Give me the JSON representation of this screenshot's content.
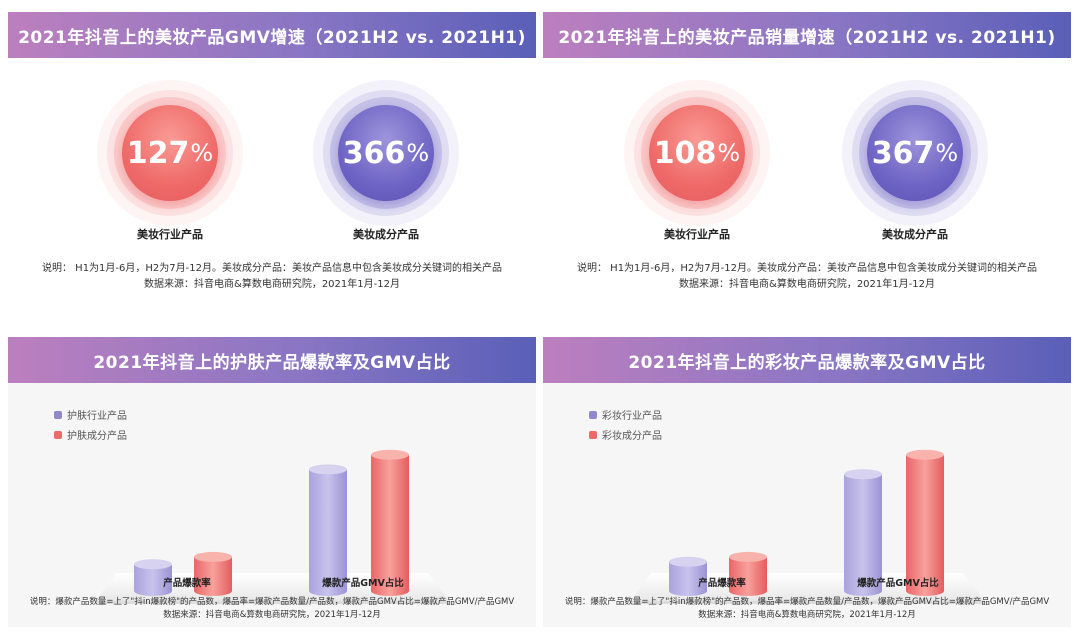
{
  "panels": {
    "p1": {
      "title": "2021年抖音上的美妆产品GMV增速（2021H2 vs. 2021H1)",
      "c1": {
        "value": "127",
        "pct": "%",
        "label": "美妆行业产品"
      },
      "c2": {
        "value": "366",
        "pct": "%",
        "label": "美妆成分产品"
      },
      "note1": "说明：  H1为1月-6月，H2为7月-12月。美妆成分产品：美妆产品信息中包含美妆成分关键词的相关产品",
      "note2": "数据来源：抖音电商&算数电商研究院，2021年1月-12月"
    },
    "p2": {
      "title": "2021年抖音上的美妆产品销量增速（2021H2 vs. 2021H1)",
      "c1": {
        "value": "108",
        "pct": "%",
        "label": "美妆行业产品"
      },
      "c2": {
        "value": "367",
        "pct": "%",
        "label": "美妆成分产品"
      },
      "note1": "说明：  H1为1月-6月，H2为7月-12月。美妆成分产品：美妆产品信息中包含美妆成分关键词的相关产品",
      "note2": "数据来源：抖音电商&算数电商研究院，2021年1月-12月"
    },
    "p3": {
      "title": "2021年抖音上的护肤产品爆款率及GMV占比",
      "legend": [
        "护肤行业产品",
        "护肤成分产品"
      ],
      "note1": "说明：爆款产品数量=上了\"抖in爆款榜\"的产品数，爆品率=爆款产品数量/产品数，爆款产品GMV占比=爆款产品GMV/产品GMV",
      "note2": "数据来源：抖音电商&算数电商研究院，2021年1月-12月"
    },
    "p4": {
      "title": "2021年抖音上的彩妆产品爆款率及GMV占比",
      "legend": [
        "彩妆行业产品",
        "彩妆成分产品"
      ],
      "note1": "说明：爆款产品数量=上了\"抖in爆款榜\"的产品数，爆品率=爆款产品数量/产品数，爆款产品GMV占比=爆款产品GMV/产品GMV",
      "note2": "数据来源：抖音电商&算数电商研究院，2021年1月-12月"
    }
  },
  "colors": {
    "purple": "#8f88cf",
    "red": "#ee6a6a"
  },
  "chart_data": [
    {
      "type": "bar",
      "title": "2021年抖音上的护肤产品爆款率及GMV占比",
      "categories": [
        "产品爆款率",
        "爆款产品GMV占比"
      ],
      "series": [
        {
          "name": "护肤行业产品",
          "values": [
            22,
            100
          ]
        },
        {
          "name": "护肤成分产品",
          "values": [
            28,
            112
          ]
        }
      ],
      "ylim": [
        0,
        120
      ]
    },
    {
      "type": "bar",
      "title": "2021年抖音上的彩妆产品爆款率及GMV占比",
      "categories": [
        "产品爆款率",
        "爆款产品GMV占比"
      ],
      "series": [
        {
          "name": "彩妆行业产品",
          "values": [
            24,
            96
          ]
        },
        {
          "name": "彩妆成分产品",
          "values": [
            28,
            112
          ]
        }
      ],
      "ylim": [
        0,
        120
      ]
    }
  ]
}
